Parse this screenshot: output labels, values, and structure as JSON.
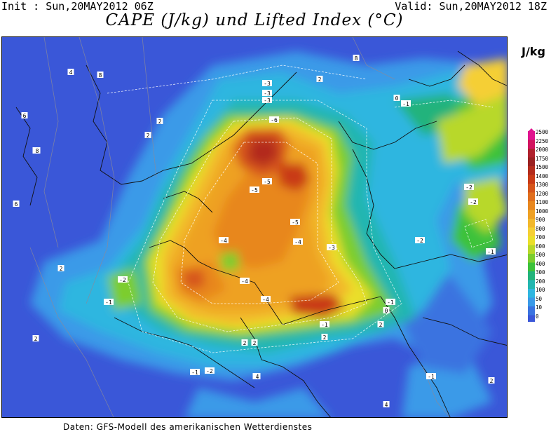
{
  "header": {
    "init": "Init : Sun,20MAY2012 06Z",
    "valid": "Valid: Sun,20MAY2012 18Z",
    "title": "CAPE (J/kg) und Lifted Index (°C)"
  },
  "unit": "J/kg",
  "footer": "Daten: GFS-Modell des amerikanischen Wetterdienstes",
  "legend": {
    "levels": [
      "2500",
      "2250",
      "2000",
      "1750",
      "1500",
      "1400",
      "1300",
      "1200",
      "1100",
      "1000",
      "900",
      "800",
      "700",
      "600",
      "500",
      "400",
      "300",
      "200",
      "100",
      "50",
      "10",
      "0"
    ],
    "colors": [
      "#e0138f",
      "#d2145f",
      "#b0222e",
      "#9a2121",
      "#b32c1c",
      "#c93b17",
      "#d6551b",
      "#e06e1d",
      "#e8871f",
      "#eea124",
      "#f2b82c",
      "#f5cf34",
      "#eadf2a",
      "#b8d82a",
      "#7ccd2f",
      "#3cc23a",
      "#22b37b",
      "#22b6b0",
      "#2fb6e0",
      "#3a9ae8",
      "#3a73e0",
      "#3a57d8"
    ]
  },
  "lifted_index_labels": [
    "-6",
    "-5",
    "-5",
    "-5",
    "-4",
    "-4",
    "-4",
    "-4",
    "-3",
    "-3",
    "-3",
    "-3",
    "-2",
    "-2",
    "-2",
    "-2",
    "-2",
    "-1",
    "-1",
    "-1",
    "-1",
    "-1",
    "-1",
    "-1",
    "0",
    "0",
    "2",
    "2",
    "2",
    "2",
    "2",
    "2",
    "2",
    "2",
    "2",
    "2",
    "2",
    "4",
    "4",
    "4",
    "6",
    "6",
    "6",
    "8",
    "8",
    "8"
  ]
}
